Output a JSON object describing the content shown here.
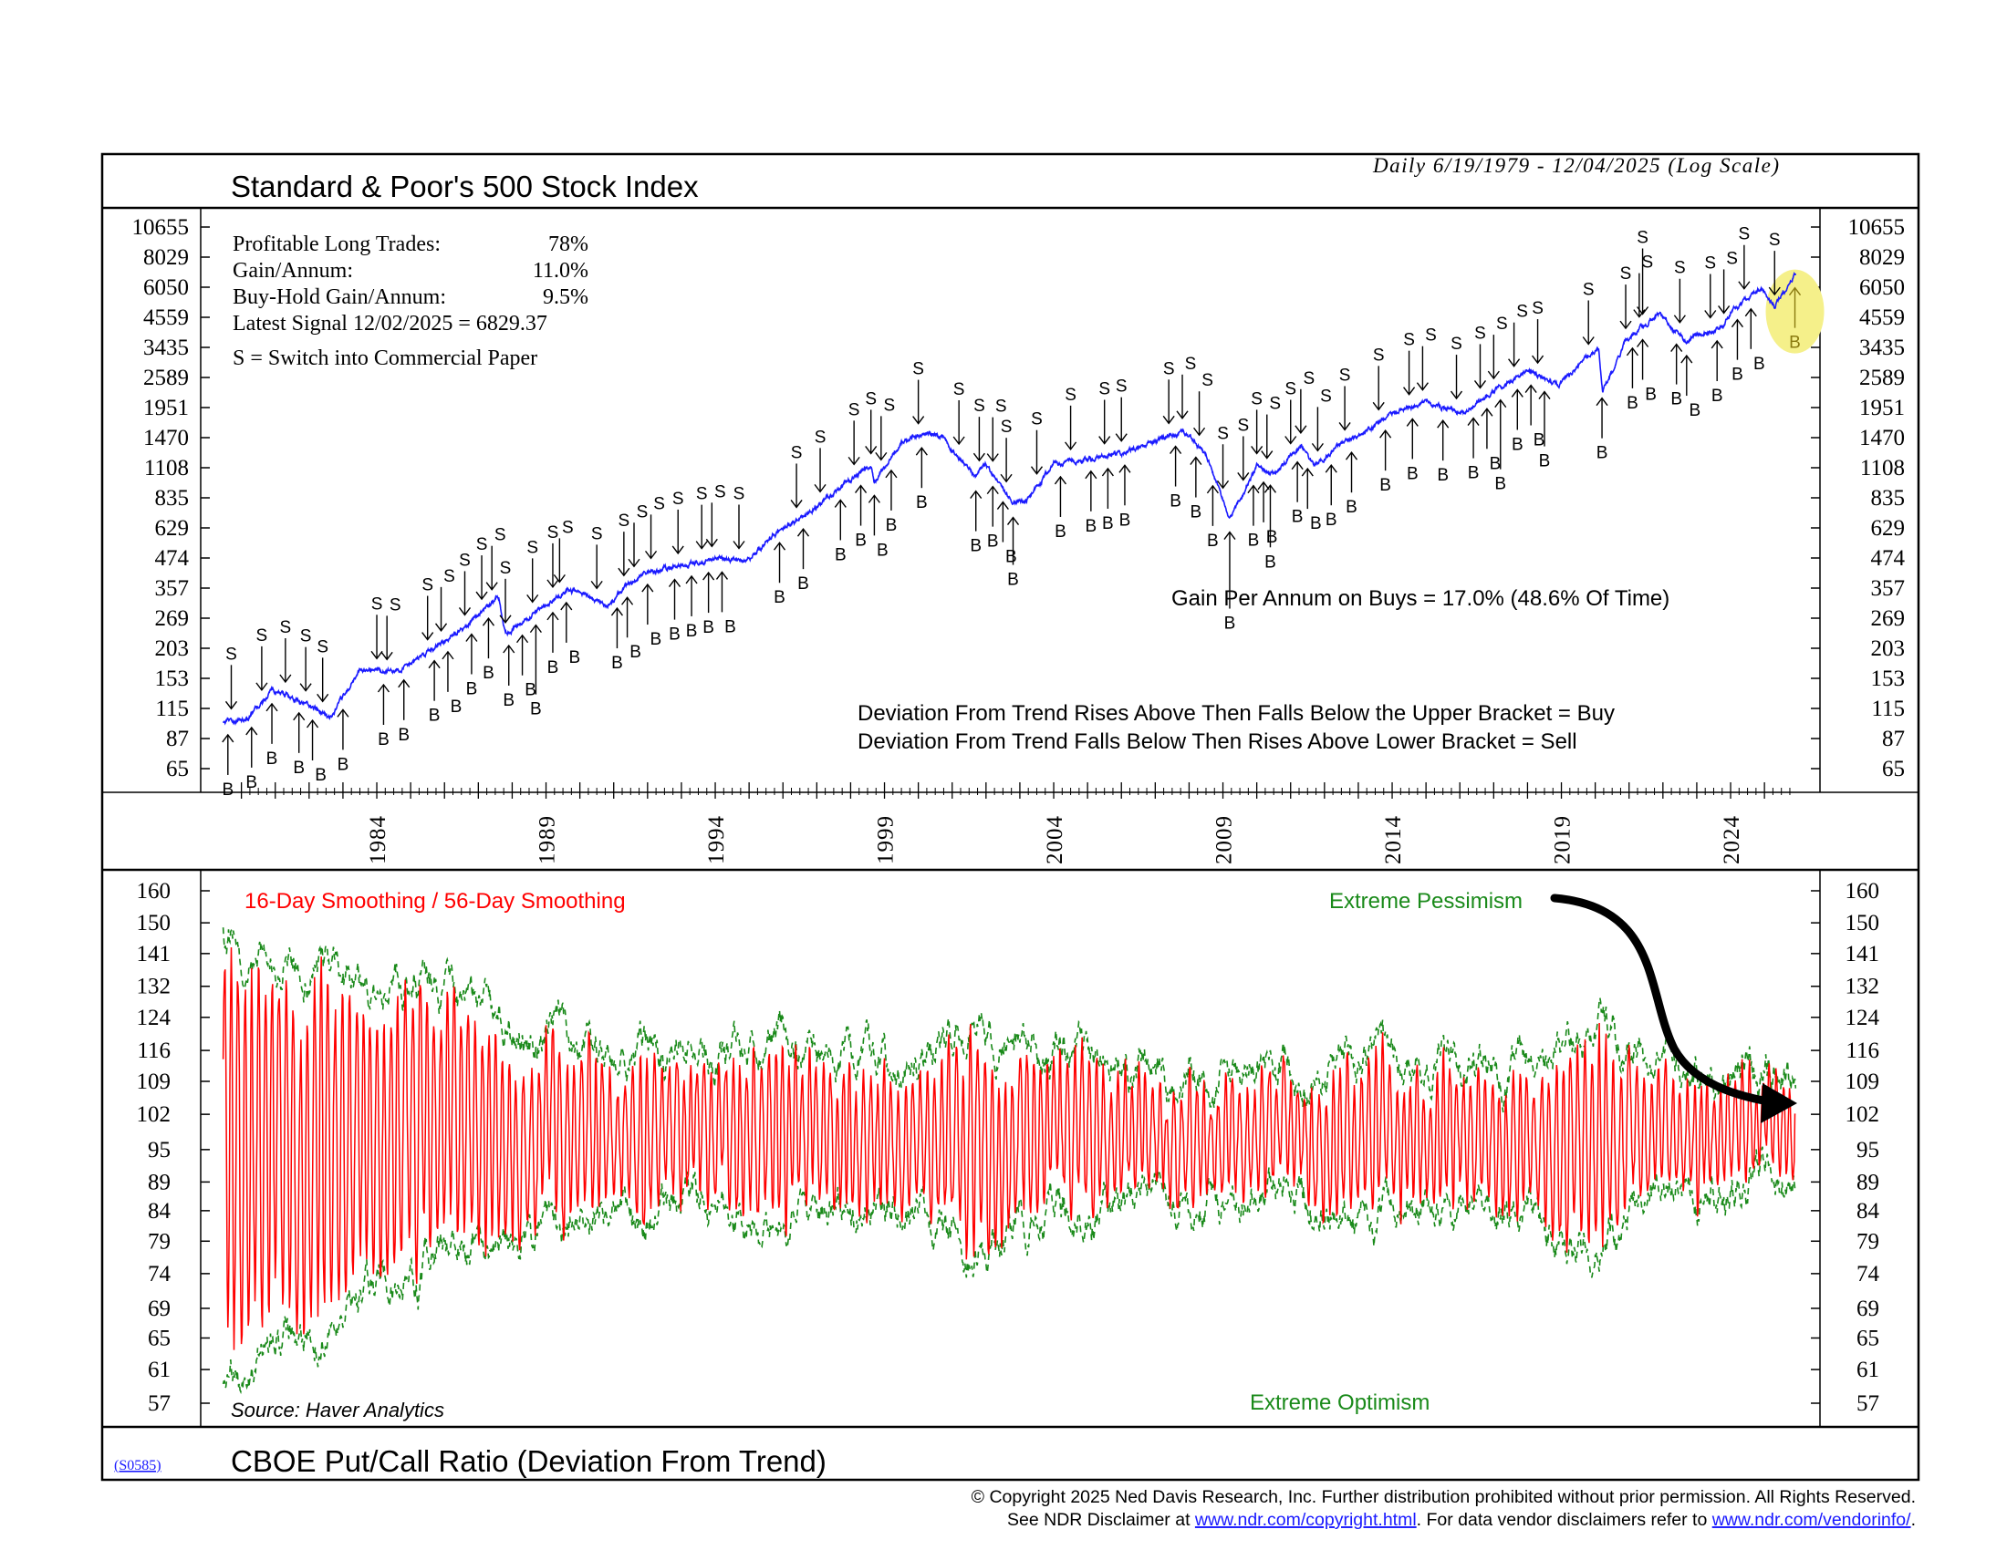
{
  "header": {
    "title": "Standard & Poor's 500 Stock Index",
    "date_range": "Daily 6/19/1979 - 12/04/2025 (Log Scale)"
  },
  "stats": {
    "rows": [
      {
        "label": "Profitable Long Trades:",
        "value": "78%"
      },
      {
        "label": "Gain/Annum:",
        "value": "11.0%"
      },
      {
        "label": "Buy-Hold Gain/Annum:",
        "value": "9.5%"
      }
    ],
    "latest_signal": "Latest Signal 12/02/2025 = 6829.37",
    "legend_s": "S =  Switch into Commercial Paper"
  },
  "annotations": {
    "gain_on_buys": "Gain Per Annum on Buys = 17.0% (48.6% Of Time)",
    "rule_buy": "Deviation From Trend Rises Above Then Falls Below the Upper Bracket = Buy",
    "rule_sell": "Deviation From Trend Falls Below Then Rises Above Lower Bracket = Sell",
    "smoothing": "16-Day Smoothing / 56-Day Smoothing",
    "extreme_pessimism": "Extreme Pessimism",
    "extreme_optimism": "Extreme Optimism",
    "source": "Source: Haver Analytics"
  },
  "footer": {
    "code": "(S0585)",
    "indicator_title": "CBOE Put/Call Ratio (Deviation From Trend)",
    "copyright": "© Copyright 2025 Ned Davis Research, Inc.  Further distribution prohibited without prior permission.  All Rights Reserved.",
    "disclaimer_prefix": "See NDR Disclaimer at ",
    "disclaimer_link1": "www.ndr.com/copyright.html",
    "disclaimer_mid": ". For data vendor disclaimers refer to ",
    "disclaimer_link2": "www.ndr.com/vendorinfo/",
    "disclaimer_suffix": "."
  },
  "colors": {
    "price": "#1a1aff",
    "deviation": "#ff0000",
    "brackets": "#1a8a1a",
    "pessimism_text": "#1a8a1a",
    "highlight": "#f5f08a",
    "latest_buy": "#8a7a10"
  },
  "chart_data": [
    {
      "type": "line",
      "title": "Standard & Poor's 500 Stock Index",
      "scale": "log",
      "x_range": [
        1979.46,
        2025.92
      ],
      "ylim": [
        65,
        10655
      ],
      "y_ticks": [
        "10655",
        "8029",
        "6050",
        "4559",
        "3435",
        "2589",
        "1951",
        "1470",
        "1108",
        "835",
        "629",
        "474",
        "357",
        "269",
        "203",
        "153",
        "115",
        "87",
        "65"
      ],
      "x_ticks": [
        "1984",
        "1989",
        "1994",
        "1999",
        "2004",
        "2009",
        "2014",
        "2019",
        "2024"
      ],
      "series": [
        {
          "name": "S&P 500",
          "points": [
            [
              1979.46,
              100
            ],
            [
              1980.2,
              104
            ],
            [
              1980.9,
              135
            ],
            [
              1981.5,
              128
            ],
            [
              1982.0,
              118
            ],
            [
              1982.6,
              104
            ],
            [
              1983.5,
              165
            ],
            [
              1984.5,
              160
            ],
            [
              1985.0,
              175
            ],
            [
              1985.9,
              211
            ],
            [
              1986.6,
              245
            ],
            [
              1987.6,
              330
            ],
            [
              1987.8,
              228
            ],
            [
              1988.5,
              270
            ],
            [
              1989.6,
              350
            ],
            [
              1990.0,
              340
            ],
            [
              1990.8,
              300
            ],
            [
              1991.5,
              380
            ],
            [
              1992.0,
              415
            ],
            [
              1993.0,
              440
            ],
            [
              1994.0,
              470
            ],
            [
              1994.9,
              455
            ],
            [
              1995.9,
              615
            ],
            [
              1996.9,
              740
            ],
            [
              1997.9,
              970
            ],
            [
              1998.6,
              1120
            ],
            [
              1998.7,
              960
            ],
            [
              1999.5,
              1400
            ],
            [
              2000.2,
              1520
            ],
            [
              2000.7,
              1500
            ],
            [
              2001.7,
              1000
            ],
            [
              2002.0,
              1150
            ],
            [
              2002.8,
              780
            ],
            [
              2003.2,
              820
            ],
            [
              2004.0,
              1130
            ],
            [
              2005.0,
              1200
            ],
            [
              2006.0,
              1260
            ],
            [
              2007.0,
              1420
            ],
            [
              2007.8,
              1560
            ],
            [
              2008.5,
              1250
            ],
            [
              2009.2,
              680
            ],
            [
              2010.0,
              1120
            ],
            [
              2010.5,
              1040
            ],
            [
              2011.3,
              1360
            ],
            [
              2011.7,
              1120
            ],
            [
              2012.5,
              1380
            ],
            [
              2013.0,
              1480
            ],
            [
              2014.0,
              1850
            ],
            [
              2015.0,
              2060
            ],
            [
              2015.7,
              1900
            ],
            [
              2016.1,
              1860
            ],
            [
              2017.0,
              2270
            ],
            [
              2018.0,
              2750
            ],
            [
              2018.9,
              2400
            ],
            [
              2019.9,
              3230
            ],
            [
              2020.1,
              3380
            ],
            [
              2020.22,
              2240
            ],
            [
              2020.9,
              3640
            ],
            [
              2021.9,
              4760
            ],
            [
              2022.7,
              3580
            ],
            [
              2023.0,
              3850
            ],
            [
              2023.8,
              4200
            ],
            [
              2024.0,
              4770
            ],
            [
              2024.9,
              6000
            ],
            [
              2025.3,
              5000
            ],
            [
              2025.92,
              6850
            ]
          ]
        }
      ],
      "signals": {
        "sell": [
          1979.7,
          1980.6,
          1981.3,
          1981.9,
          1982.4,
          1984.0,
          1984.3,
          1985.5,
          1985.9,
          1986.6,
          1987.1,
          1987.4,
          1987.8,
          1988.6,
          1989.2,
          1989.4,
          1990.5,
          1991.3,
          1991.6,
          1992.1,
          1992.9,
          1993.6,
          1993.9,
          1994.7,
          1996.4,
          1997.1,
          1998.1,
          1998.6,
          1998.9,
          2000.0,
          2001.2,
          2001.8,
          2002.2,
          2002.6,
          2003.5,
          2004.5,
          2005.5,
          2006.0,
          2007.4,
          2007.8,
          2008.3,
          2009.0,
          2009.6,
          2010.0,
          2010.3,
          2011.0,
          2011.3,
          2011.8,
          2012.6,
          2013.6,
          2014.5,
          2014.9,
          2015.9,
          2016.6,
          2017.0,
          2017.6,
          2018.3,
          2019.8,
          2020.9,
          2021.3,
          2021.4,
          2022.5,
          2023.4,
          2023.8,
          2024.4,
          2025.3
        ],
        "buy": [
          1979.6,
          1980.3,
          1980.9,
          1981.7,
          1982.1,
          1983.0,
          1984.2,
          1984.8,
          1985.7,
          1986.1,
          1986.8,
          1987.3,
          1987.9,
          1988.3,
          1988.7,
          1989.2,
          1989.6,
          1991.1,
          1991.4,
          1992.0,
          1992.8,
          1993.3,
          1993.8,
          1994.2,
          1995.9,
          1996.6,
          1997.7,
          1998.3,
          1998.7,
          1999.2,
          2000.1,
          2001.7,
          2002.2,
          2002.5,
          2002.8,
          2004.2,
          2005.1,
          2005.6,
          2006.1,
          2007.6,
          2008.2,
          2008.7,
          2009.2,
          2009.9,
          2010.2,
          2010.4,
          2011.2,
          2011.5,
          2012.2,
          2012.8,
          2013.8,
          2014.6,
          2015.5,
          2016.4,
          2016.8,
          2017.2,
          2017.7,
          2018.1,
          2018.5,
          2020.2,
          2021.1,
          2021.4,
          2022.4,
          2022.7,
          2023.6,
          2024.2,
          2024.6,
          2025.9
        ],
        "sell_label": "S",
        "buy_label": "B"
      }
    },
    {
      "type": "line",
      "title": "CBOE Put/Call Ratio (Deviation From Trend)",
      "scale": "log",
      "x_range": [
        1979.46,
        2025.92
      ],
      "ylim": [
        57,
        160
      ],
      "y_ticks": [
        "160",
        "150",
        "141",
        "132",
        "124",
        "116",
        "109",
        "102",
        "95",
        "89",
        "84",
        "79",
        "74",
        "69",
        "65",
        "61",
        "57"
      ],
      "series": [
        {
          "name": "Deviation (16-Day Smoothing)",
          "style": "solid red",
          "latest": 102
        },
        {
          "name": "Upper Bracket",
          "style": "dashed green",
          "x_step_years": 2,
          "values": [
            148,
            138,
            130,
            132,
            122,
            118,
            116,
            113,
            118,
            114,
            112,
            122,
            116,
            112,
            110,
            114,
            111,
            116,
            113,
            112,
            122,
            113,
            111,
            112
          ]
        },
        {
          "name": "Lower Bracket",
          "style": "dashed green",
          "x_step_years": 2,
          "values": [
            60,
            64,
            70,
            74,
            80,
            81,
            83,
            85,
            81,
            84,
            86,
            78,
            84,
            86,
            87,
            86,
            88,
            85,
            86,
            84,
            76,
            87,
            88,
            90
          ]
        }
      ]
    }
  ]
}
